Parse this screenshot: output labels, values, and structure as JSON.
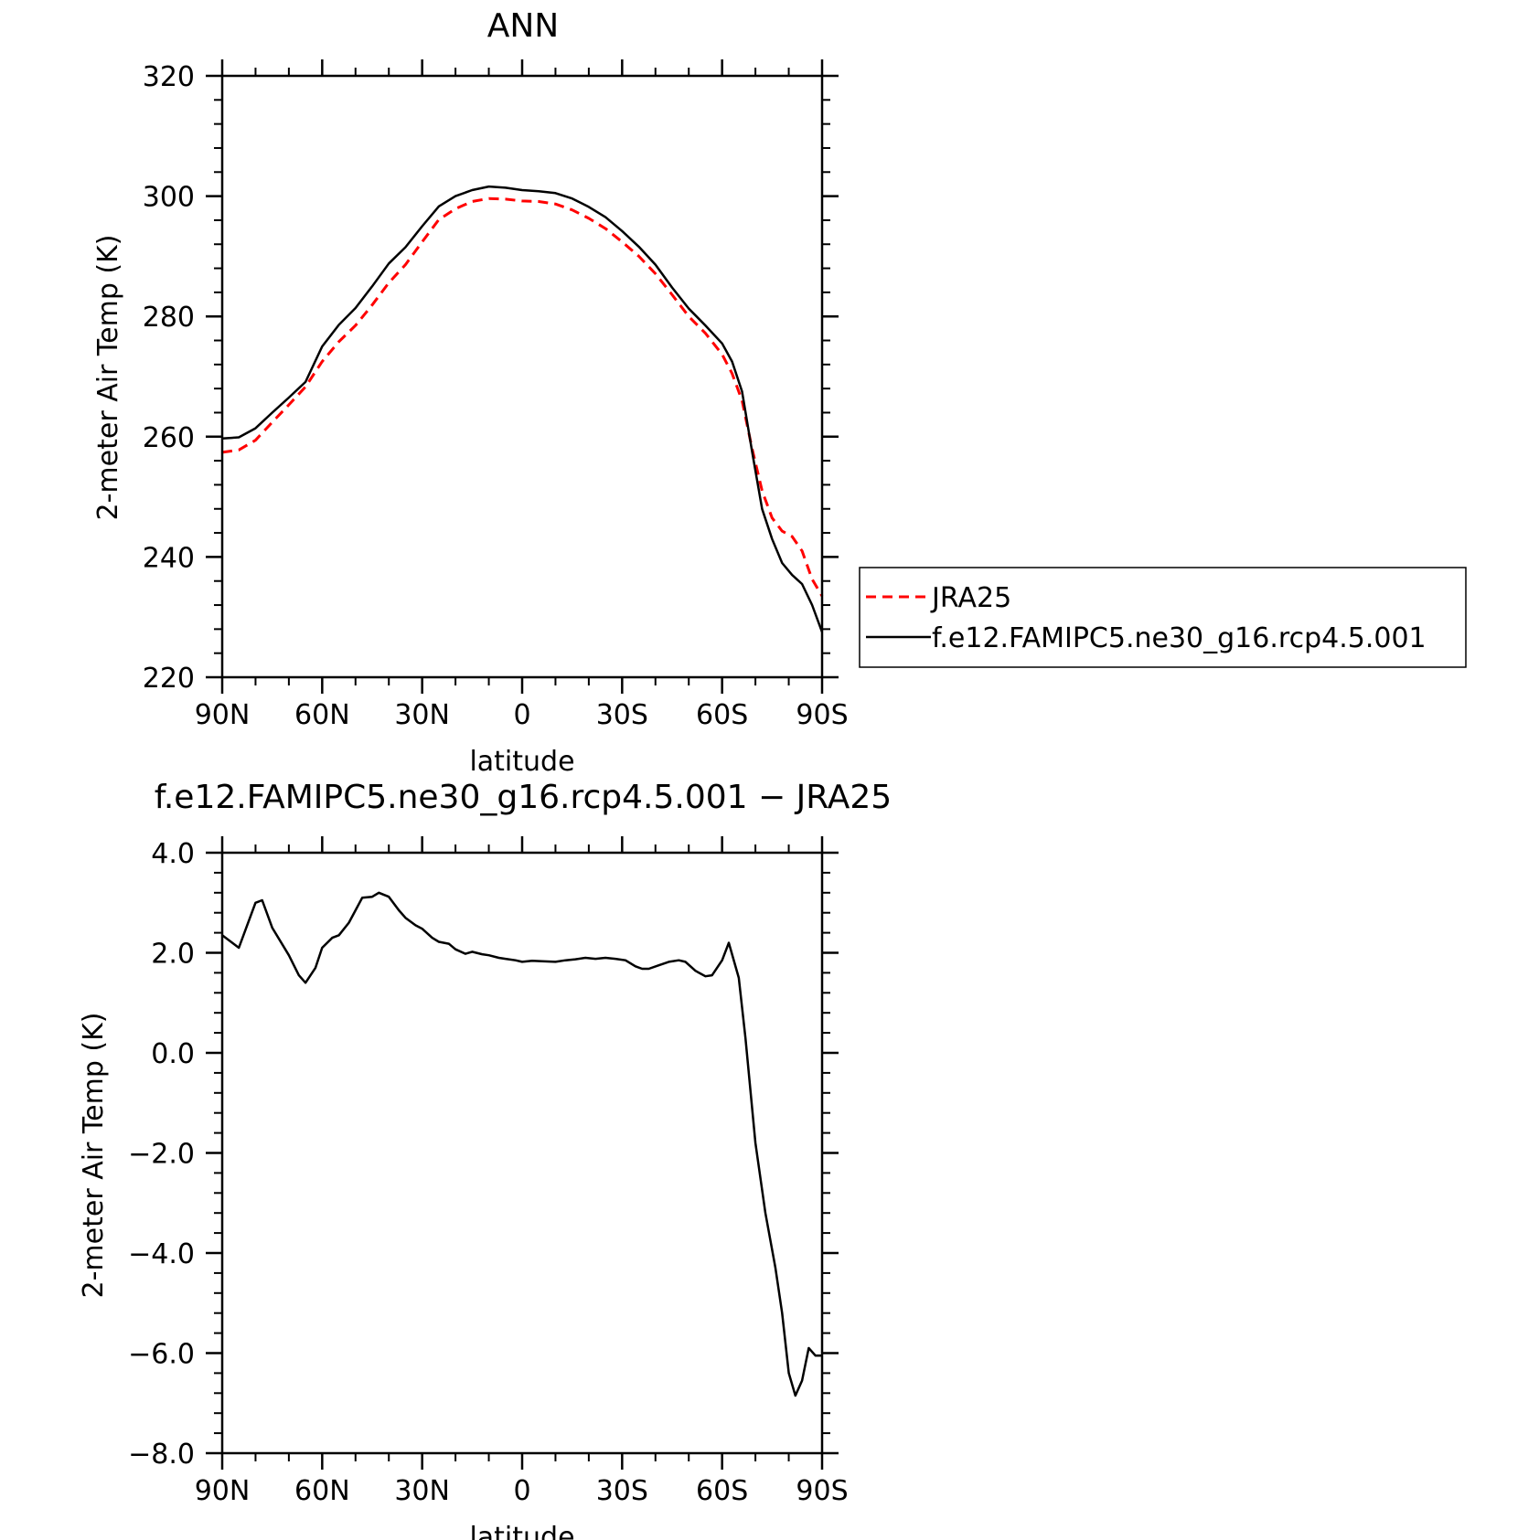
{
  "chart_data": [
    {
      "type": "line",
      "title": "ANN",
      "xlabel": "latitude",
      "ylabel": "2-meter Air Temp (K)",
      "xlim": [
        90,
        -90
      ],
      "ylim": [
        220,
        320
      ],
      "yticks": [
        220,
        240,
        260,
        280,
        300,
        320
      ],
      "ytick_labels": [
        "220",
        "240",
        "260",
        "280",
        "300",
        "320"
      ],
      "xticks": [
        90,
        60,
        30,
        0,
        -30,
        -60,
        -90
      ],
      "xtick_labels": [
        "90N",
        "60N",
        "30N",
        "0",
        "30S",
        "60S",
        "90S"
      ],
      "grid": false,
      "legend": "right",
      "series": [
        {
          "name": "JRA25",
          "color": "#ff0000",
          "style": "dashed",
          "points": [
            [
              90,
              257.4
            ],
            [
              85,
              257.8
            ],
            [
              80,
              259.4
            ],
            [
              75,
              262.4
            ],
            [
              70,
              265.3
            ],
            [
              65,
              268.3
            ],
            [
              60,
              272.5
            ],
            [
              55,
              275.8
            ],
            [
              50,
              278.5
            ],
            [
              45,
              281.9
            ],
            [
              40,
              285.6
            ],
            [
              35,
              288.6
            ],
            [
              30,
              292.4
            ],
            [
              25,
              296.1
            ],
            [
              20,
              297.9
            ],
            [
              15,
              299.1
            ],
            [
              10,
              299.6
            ],
            [
              5,
              299.5
            ],
            [
              0,
              299.2
            ],
            [
              -5,
              299.1
            ],
            [
              -10,
              298.7
            ],
            [
              -15,
              297.7
            ],
            [
              -20,
              296.3
            ],
            [
              -25,
              294.6
            ],
            [
              -30,
              292.4
            ],
            [
              -35,
              290.0
            ],
            [
              -40,
              287.1
            ],
            [
              -45,
              283.6
            ],
            [
              -50,
              280.0
            ],
            [
              -55,
              277.2
            ],
            [
              -60,
              273.7
            ],
            [
              -63,
              270.5
            ],
            [
              -66,
              266.0
            ],
            [
              -69,
              258.0
            ],
            [
              -72,
              251.0
            ],
            [
              -75,
              246.5
            ],
            [
              -78,
              244.3
            ],
            [
              -81,
              243.4
            ],
            [
              -84,
              241.0
            ],
            [
              -87,
              236.3
            ],
            [
              -90,
              233.5
            ]
          ]
        },
        {
          "name": "f.e12.FAMIPC5.ne30_g16.rcp4.5.001",
          "color": "#000000",
          "style": "solid",
          "points": [
            [
              90,
              259.7
            ],
            [
              85,
              259.9
            ],
            [
              80,
              261.4
            ],
            [
              75,
              264.0
            ],
            [
              70,
              266.5
            ],
            [
              65,
              269.1
            ],
            [
              60,
              275.0
            ],
            [
              55,
              278.6
            ],
            [
              50,
              281.4
            ],
            [
              45,
              285.0
            ],
            [
              40,
              288.8
            ],
            [
              35,
              291.5
            ],
            [
              30,
              295.0
            ],
            [
              25,
              298.3
            ],
            [
              20,
              300.0
            ],
            [
              15,
              301.0
            ],
            [
              10,
              301.6
            ],
            [
              5,
              301.4
            ],
            [
              0,
              301.0
            ],
            [
              -5,
              300.8
            ],
            [
              -10,
              300.5
            ],
            [
              -15,
              299.6
            ],
            [
              -20,
              298.2
            ],
            [
              -25,
              296.5
            ],
            [
              -30,
              294.2
            ],
            [
              -35,
              291.6
            ],
            [
              -40,
              288.6
            ],
            [
              -45,
              284.8
            ],
            [
              -50,
              281.3
            ],
            [
              -55,
              278.5
            ],
            [
              -60,
              275.5
            ],
            [
              -63,
              272.5
            ],
            [
              -66,
              267.5
            ],
            [
              -69,
              257.5
            ],
            [
              -72,
              248.0
            ],
            [
              -75,
              243.0
            ],
            [
              -78,
              239.0
            ],
            [
              -81,
              237.0
            ],
            [
              -84,
              235.5
            ],
            [
              -87,
              232.0
            ],
            [
              -90,
              227.5
            ]
          ]
        }
      ]
    },
    {
      "type": "line",
      "title": "f.e12.FAMIPC5.ne30_g16.rcp4.5.001 − JRA25",
      "xlabel": "latitude",
      "ylabel": "2-meter Air Temp (K)",
      "xlim": [
        90,
        -90
      ],
      "ylim": [
        -8,
        4
      ],
      "yticks": [
        -8,
        -6,
        -4,
        -2,
        0,
        2,
        4
      ],
      "ytick_labels": [
        "−8.0",
        "−6.0",
        "−4.0",
        "−2.0",
        "0.0",
        "2.0",
        "4.0"
      ],
      "xticks": [
        90,
        60,
        30,
        0,
        -30,
        -60,
        -90
      ],
      "xtick_labels": [
        "90N",
        "60N",
        "30N",
        "0",
        "30S",
        "60S",
        "90S"
      ],
      "grid": false,
      "series": [
        {
          "color": "#000000",
          "style": "solid",
          "points": [
            [
              90,
              2.35
            ],
            [
              85,
              2.1
            ],
            [
              80,
              3.0
            ],
            [
              78,
              3.05
            ],
            [
              75,
              2.5
            ],
            [
              70,
              1.95
            ],
            [
              67,
              1.55
            ],
            [
              65,
              1.4
            ],
            [
              62,
              1.7
            ],
            [
              60,
              2.1
            ],
            [
              57,
              2.3
            ],
            [
              55,
              2.35
            ],
            [
              52,
              2.6
            ],
            [
              50,
              2.85
            ],
            [
              48,
              3.1
            ],
            [
              45,
              3.12
            ],
            [
              43,
              3.2
            ],
            [
              40,
              3.12
            ],
            [
              37,
              2.85
            ],
            [
              35,
              2.7
            ],
            [
              32,
              2.55
            ],
            [
              30,
              2.48
            ],
            [
              27,
              2.3
            ],
            [
              25,
              2.22
            ],
            [
              22,
              2.18
            ],
            [
              20,
              2.07
            ],
            [
              17,
              1.98
            ],
            [
              15,
              2.02
            ],
            [
              12,
              1.97
            ],
            [
              10,
              1.95
            ],
            [
              7,
              1.9
            ],
            [
              5,
              1.88
            ],
            [
              2,
              1.85
            ],
            [
              0,
              1.82
            ],
            [
              -3,
              1.84
            ],
            [
              -6,
              1.83
            ],
            [
              -10,
              1.82
            ],
            [
              -13,
              1.85
            ],
            [
              -16,
              1.87
            ],
            [
              -19,
              1.9
            ],
            [
              -22,
              1.88
            ],
            [
              -25,
              1.9
            ],
            [
              -28,
              1.88
            ],
            [
              -31,
              1.85
            ],
            [
              -34,
              1.73
            ],
            [
              -36,
              1.68
            ],
            [
              -38,
              1.68
            ],
            [
              -41,
              1.75
            ],
            [
              -44,
              1.82
            ],
            [
              -47,
              1.85
            ],
            [
              -49,
              1.82
            ],
            [
              -52,
              1.64
            ],
            [
              -55,
              1.53
            ],
            [
              -57,
              1.55
            ],
            [
              -60,
              1.85
            ],
            [
              -62,
              2.2
            ],
            [
              -65,
              1.5
            ],
            [
              -67,
              0.3
            ],
            [
              -70,
              -1.8
            ],
            [
              -73,
              -3.2
            ],
            [
              -76,
              -4.3
            ],
            [
              -78,
              -5.2
            ],
            [
              -80,
              -6.4
            ],
            [
              -82,
              -6.85
            ],
            [
              -84,
              -6.55
            ],
            [
              -86,
              -5.9
            ],
            [
              -88,
              -6.05
            ],
            [
              -90,
              -6.05
            ]
          ]
        }
      ]
    }
  ]
}
